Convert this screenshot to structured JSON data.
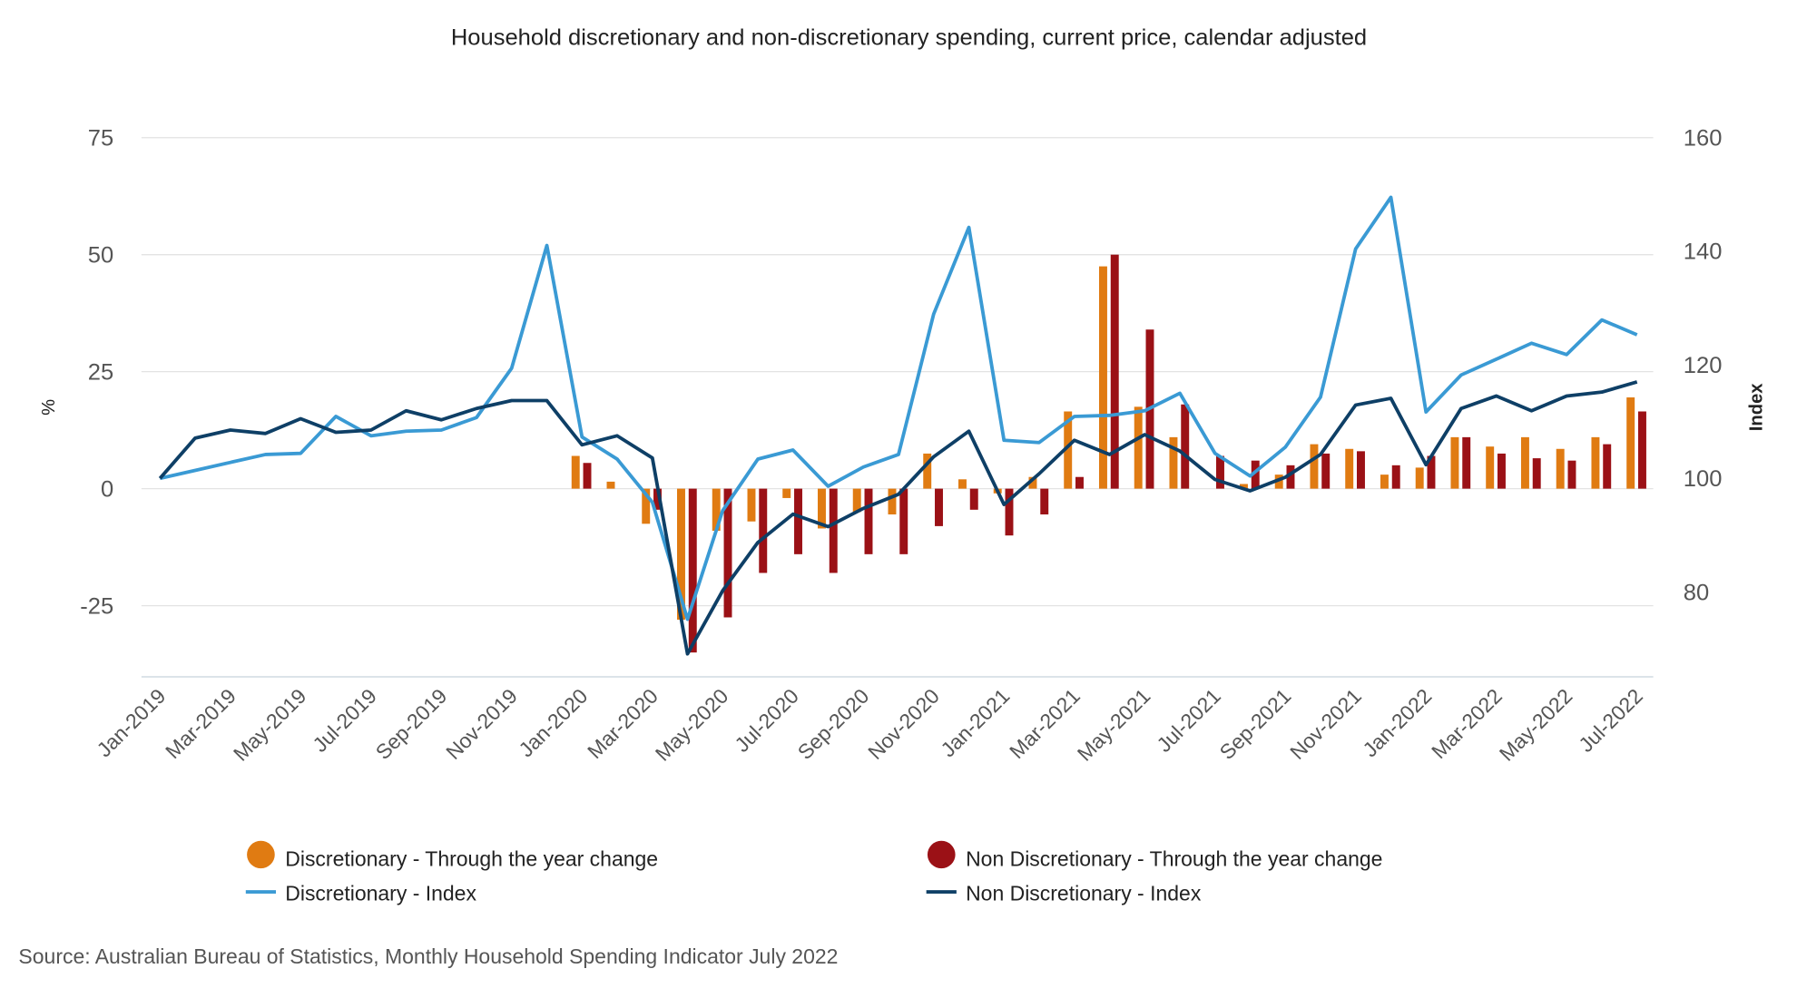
{
  "chart_data": {
    "type": "bar+line",
    "title": "Household discretionary and non-discretionary spending, current price, calendar adjusted",
    "ylabel_left": "%",
    "ylabel_right": "Index",
    "ylim_left": [
      -40,
      75
    ],
    "ylim_right": [
      67,
      160
    ],
    "yticks_left": [
      "75",
      "50",
      "25",
      "0",
      "-25"
    ],
    "yticks_left_values": [
      75,
      50,
      25,
      0,
      -25
    ],
    "yticks_right": [
      "160",
      "140",
      "120",
      "100",
      "80"
    ],
    "yticks_right_values": [
      160,
      140,
      120,
      100,
      80
    ],
    "grid": true,
    "legend_position": "bottom",
    "categories": [
      "Jan-2019",
      "Feb-2019",
      "Mar-2019",
      "Apr-2019",
      "May-2019",
      "Jun-2019",
      "Jul-2019",
      "Aug-2019",
      "Sep-2019",
      "Oct-2019",
      "Nov-2019",
      "Dec-2019",
      "Jan-2020",
      "Feb-2020",
      "Mar-2020",
      "Apr-2020",
      "May-2020",
      "Jun-2020",
      "Jul-2020",
      "Aug-2020",
      "Sep-2020",
      "Oct-2020",
      "Nov-2020",
      "Dec-2020",
      "Jan-2021",
      "Feb-2021",
      "Mar-2021",
      "Apr-2021",
      "May-2021",
      "Jun-2021",
      "Jul-2021",
      "Aug-2021",
      "Sep-2021",
      "Oct-2021",
      "Nov-2021",
      "Dec-2021",
      "Jan-2022",
      "Feb-2022",
      "Mar-2022",
      "Apr-2022",
      "May-2022",
      "Jun-2022",
      "Jul-2022"
    ],
    "xtick_labels": [
      "Jan-2019",
      "Mar-2019",
      "May-2019",
      "Jul-2019",
      "Sep-2019",
      "Nov-2019",
      "Jan-2020",
      "Mar-2020",
      "May-2020",
      "Jul-2020",
      "Sep-2020",
      "Nov-2020",
      "Jan-2021",
      "Mar-2021",
      "May-2021",
      "Jul-2021",
      "Sep-2021",
      "Nov-2021",
      "Jan-2022",
      "Mar-2022",
      "May-2022",
      "Jul-2022"
    ],
    "series": [
      {
        "name": "Discretionary - Through the year change",
        "type": "bar",
        "axis": "left",
        "color": "#E07B12",
        "values": [
          null,
          null,
          null,
          null,
          null,
          null,
          null,
          null,
          null,
          null,
          null,
          null,
          7,
          1.5,
          -7.5,
          -28,
          -9,
          -7,
          -2,
          -8.5,
          -5,
          -5.5,
          7.5,
          2,
          -1,
          2.5,
          16.5,
          47.5,
          17.5,
          11,
          0,
          1,
          3,
          9.5,
          8.5,
          3,
          4.5,
          11,
          9,
          11,
          8.5,
          11,
          19.5
        ]
      },
      {
        "name": "Non Discretionary - Through the year change",
        "type": "bar",
        "axis": "left",
        "color": "#9B1116",
        "values": [
          null,
          null,
          null,
          null,
          null,
          null,
          null,
          null,
          null,
          null,
          null,
          null,
          5.5,
          0,
          -4.5,
          -35,
          -27.5,
          -18,
          -14,
          -18,
          -14,
          -14,
          -8,
          -4.5,
          -10,
          -5.5,
          2.5,
          50,
          34,
          18,
          7,
          6,
          5,
          7.5,
          8,
          5,
          7,
          11,
          7.5,
          6.5,
          6,
          9.5,
          16.5
        ]
      },
      {
        "name": "Discretionary - Index",
        "type": "line",
        "axis": "right",
        "color": "#3A9AD4",
        "values": [
          100,
          101.4,
          102.8,
          104.2,
          104.4,
          110.9,
          107.5,
          108.3,
          108.5,
          110.7,
          119.4,
          141,
          107.3,
          103.4,
          95.8,
          75.2,
          94.3,
          103.4,
          105,
          98.6,
          102,
          104.2,
          128.9,
          144.2,
          106.7,
          106.3,
          110.9,
          111.1,
          111.9,
          115,
          104.4,
          100.4,
          105.5,
          114.3,
          140.4,
          149.5,
          111.7,
          118.2,
          121,
          123.8,
          121.8,
          127.9,
          125.3
        ]
      },
      {
        "name": "Non Discretionary - Index",
        "type": "line",
        "axis": "right",
        "color": "#0E3F66",
        "values": [
          100,
          107.1,
          108.5,
          107.9,
          110.5,
          108.1,
          108.5,
          111.9,
          110.3,
          112.3,
          113.7,
          113.7,
          105.9,
          107.5,
          103.6,
          69.1,
          80.2,
          88.7,
          93.7,
          91.5,
          94.7,
          97.2,
          103.8,
          108.3,
          95.4,
          100.8,
          106.7,
          104.2,
          107.7,
          104.8,
          99.8,
          97.8,
          100.2,
          104.2,
          112.9,
          114.1,
          102.4,
          112.3,
          114.5,
          111.9,
          114.5,
          115.2,
          117
        ]
      }
    ],
    "source": "Source: Australian Bureau of Statistics, Monthly Household Spending Indicator July 2022"
  }
}
